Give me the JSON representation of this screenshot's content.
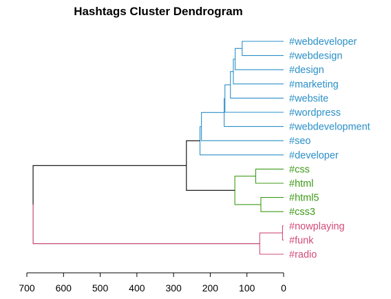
{
  "chart_data": {
    "type": "dendrogram",
    "title": "Hashtags Cluster Dendrogram",
    "xlim": [
      700,
      0
    ],
    "x_ticks": [
      700,
      600,
      500,
      400,
      300,
      200,
      100,
      0
    ],
    "colors": {
      "group1": "#2a8fc7",
      "group2": "#3c9a17",
      "group3": "#d24b79",
      "root": "#000000"
    },
    "leaves": [
      {
        "label": "#webdeveloper",
        "group": "group1"
      },
      {
        "label": "#webdesign",
        "group": "group1"
      },
      {
        "label": "#design",
        "group": "group1"
      },
      {
        "label": "#marketing",
        "group": "group1"
      },
      {
        "label": "#website",
        "group": "group1"
      },
      {
        "label": "#wordpress",
        "group": "group1"
      },
      {
        "label": "#webdevelopment",
        "group": "group1"
      },
      {
        "label": "#seo",
        "group": "group1"
      },
      {
        "label": "#developer",
        "group": "group1"
      },
      {
        "label": "#css",
        "group": "group2"
      },
      {
        "label": "#html",
        "group": "group2"
      },
      {
        "label": "#html5",
        "group": "group2"
      },
      {
        "label": "#css3",
        "group": "group2"
      },
      {
        "label": "#nowplaying",
        "group": "group3"
      },
      {
        "label": "#funk",
        "group": "group3"
      },
      {
        "label": "#radio",
        "group": "group3"
      }
    ],
    "merges": [
      {
        "a": "L0",
        "b": "L1",
        "height": 113,
        "group": "group1"
      },
      {
        "a": "L2",
        "b": "M0",
        "height": 132,
        "group": "group1"
      },
      {
        "a": "L3",
        "b": "M1",
        "height": 137,
        "group": "group1"
      },
      {
        "a": "L4",
        "b": "M2",
        "height": 145,
        "group": "group1"
      },
      {
        "a": "L5",
        "b": "M3",
        "height": 160,
        "group": "group1"
      },
      {
        "a": "L6",
        "b": "M4",
        "height": 162,
        "group": "group1"
      },
      {
        "a": "L7",
        "b": "M5",
        "height": 224,
        "group": "group1"
      },
      {
        "a": "L8",
        "b": "M6",
        "height": 228,
        "group": "group1"
      },
      {
        "a": "L9",
        "b": "L10",
        "height": 76,
        "group": "group2"
      },
      {
        "a": "L11",
        "b": "L12",
        "height": 62,
        "group": "group2"
      },
      {
        "a": "M8",
        "b": "M9",
        "height": 133,
        "group": "group2"
      },
      {
        "a": "M7",
        "b": "M10",
        "height": 265,
        "group": "root"
      },
      {
        "a": "L13",
        "b": "L14",
        "height": 3,
        "group": "group3"
      },
      {
        "a": "M12",
        "b": "L15",
        "height": 65,
        "group": "group3"
      },
      {
        "a": "M11",
        "b": "M13",
        "height": 683,
        "group": "root"
      }
    ]
  }
}
